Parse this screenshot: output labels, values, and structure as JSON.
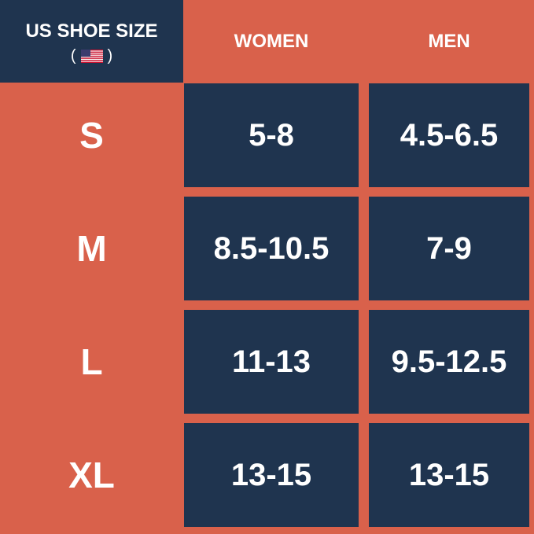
{
  "table": {
    "corner_title": "US SHOE SIZE",
    "corner_open": "(",
    "corner_close": ")",
    "columns": [
      "WOMEN",
      "MEN"
    ],
    "rows": [
      [
        "S",
        "5-8",
        "4.5-6.5"
      ],
      [
        "M",
        "8.5-10.5",
        "7-9"
      ],
      [
        "L",
        "11-13",
        "9.5-12.5"
      ],
      [
        "XL",
        "13-15",
        "13-15"
      ]
    ]
  }
}
